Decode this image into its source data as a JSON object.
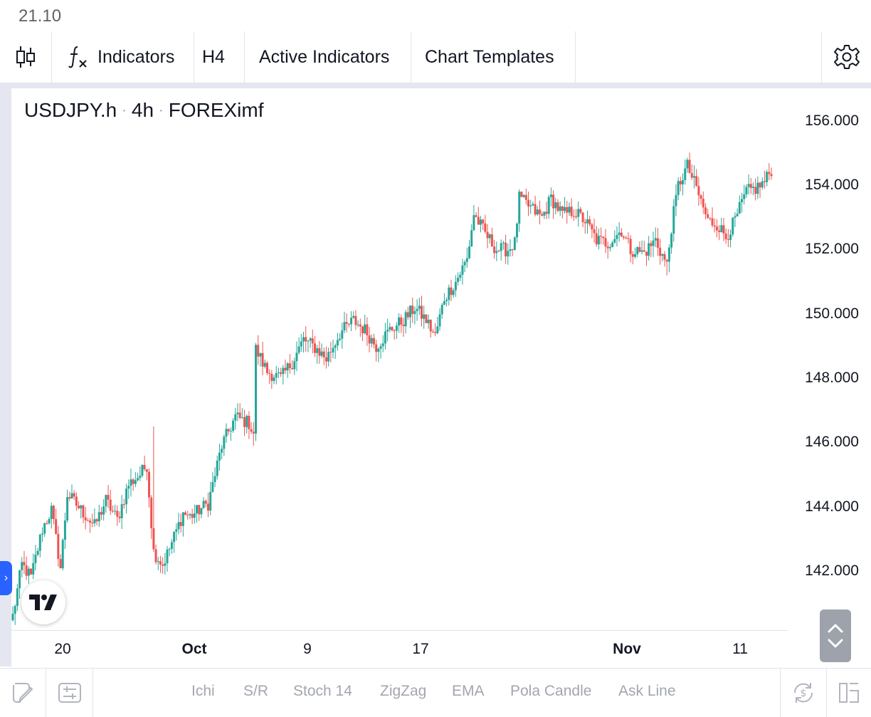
{
  "status": {
    "time": "21.10"
  },
  "toolbar": {
    "indicators_label": "Indicators",
    "interval_label": "H4",
    "active_indicators_label": "Active Indicators",
    "chart_templates_label": "Chart Templates"
  },
  "chart": {
    "symbol": "USDJPY.h",
    "interval": "4h",
    "exchange": "FOREXimf",
    "separator": "·"
  },
  "colors": {
    "up": "#26a69a",
    "down": "#ef5350",
    "accent": "#2962ff"
  },
  "chart_data": {
    "type": "candlestick",
    "symbol": "USDJPY.h",
    "interval": "4h",
    "y_range": [
      140.2,
      156.6
    ],
    "y_ticks": [
      "156.000",
      "154.000",
      "152.000",
      "150.000",
      "148.000",
      "146.000",
      "144.000",
      "142.000"
    ],
    "x_ticks": [
      {
        "label": "20",
        "bold": false
      },
      {
        "label": "Oct",
        "bold": true
      },
      {
        "label": "9",
        "bold": false
      },
      {
        "label": "17",
        "bold": false
      },
      {
        "label": "Nov",
        "bold": true
      },
      {
        "label": "11",
        "bold": false
      }
    ],
    "close_anchors": [
      [
        0,
        140.6
      ],
      [
        4,
        142.2
      ],
      [
        8,
        141.8
      ],
      [
        13,
        143.3
      ],
      [
        17,
        143.9
      ],
      [
        21,
        142.1
      ],
      [
        24,
        144.4
      ],
      [
        30,
        143.9
      ],
      [
        36,
        143.4
      ],
      [
        41,
        144.2
      ],
      [
        46,
        143.6
      ],
      [
        51,
        144.7
      ],
      [
        56,
        145.0
      ],
      [
        59,
        145.3
      ],
      [
        62,
        142.6
      ],
      [
        66,
        142.2
      ],
      [
        69,
        142.7
      ],
      [
        75,
        143.8
      ],
      [
        78,
        143.7
      ],
      [
        82,
        143.9
      ],
      [
        86,
        144.1
      ],
      [
        92,
        145.9
      ],
      [
        98,
        146.8
      ],
      [
        104,
        146.6
      ],
      [
        106,
        146.3
      ],
      [
        107,
        148.9
      ],
      [
        112,
        148.2
      ],
      [
        118,
        148.0
      ],
      [
        123,
        148.5
      ],
      [
        128,
        149.2
      ],
      [
        134,
        148.9
      ],
      [
        138,
        148.6
      ],
      [
        144,
        149.4
      ],
      [
        150,
        149.8
      ],
      [
        155,
        149.5
      ],
      [
        160,
        149.0
      ],
      [
        166,
        149.5
      ],
      [
        172,
        149.8
      ],
      [
        177,
        150.2
      ],
      [
        182,
        149.8
      ],
      [
        186,
        149.3
      ],
      [
        190,
        150.5
      ],
      [
        195,
        151.0
      ],
      [
        200,
        151.7
      ],
      [
        203,
        153.1
      ],
      [
        208,
        152.5
      ],
      [
        213,
        152.0
      ],
      [
        218,
        152.0
      ],
      [
        221,
        152.2
      ],
      [
        223,
        153.6
      ],
      [
        228,
        153.3
      ],
      [
        233,
        153.0
      ],
      [
        237,
        153.6
      ],
      [
        242,
        153.1
      ],
      [
        247,
        153.2
      ],
      [
        252,
        152.9
      ],
      [
        257,
        152.3
      ],
      [
        262,
        152.2
      ],
      [
        268,
        152.6
      ],
      [
        272,
        152.0
      ],
      [
        278,
        151.9
      ],
      [
        283,
        152.3
      ],
      [
        288,
        151.5
      ],
      [
        290,
        152.7
      ],
      [
        293,
        154.0
      ],
      [
        297,
        154.6
      ],
      [
        301,
        153.9
      ],
      [
        306,
        152.9
      ],
      [
        310,
        152.8
      ],
      [
        314,
        152.4
      ],
      [
        318,
        152.9
      ],
      [
        323,
        153.8
      ],
      [
        327,
        153.9
      ],
      [
        331,
        154.1
      ],
      [
        334,
        154.5
      ]
    ],
    "candle_count": 335
  },
  "bottom_bar": {
    "pills": [
      "Ichi",
      "S/R",
      "Stoch 14",
      "ZigZag",
      "EMA",
      "Pola Candle",
      "Ask Line"
    ]
  },
  "icons": {
    "chart_type": "candles-icon",
    "indicators": "fx-icon",
    "settings": "gear-icon",
    "draw": "pencil-icon",
    "object_tree": "sliders-icon",
    "trade": "currency-refresh-icon",
    "layout": "split-screen-icon",
    "logo": "tradingview-logo-icon"
  }
}
